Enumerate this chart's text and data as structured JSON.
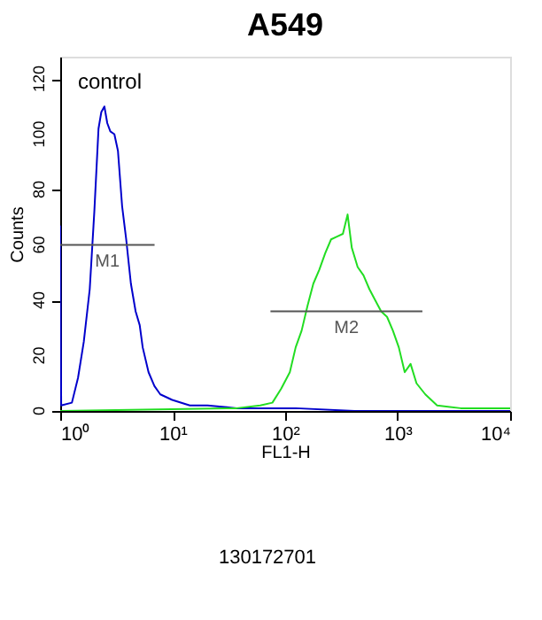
{
  "chart_data": {
    "type": "line",
    "title": "A549",
    "xlabel": "FL1-H",
    "ylabel": "Counts",
    "log": "x",
    "xlim": [
      1,
      10000
    ],
    "xticks": [
      {
        "value": 1,
        "label": "10⁰"
      },
      {
        "value": 10,
        "label": "10¹"
      },
      {
        "value": 100,
        "label": "10²"
      },
      {
        "value": 1000,
        "label": "10³"
      },
      {
        "value": 10000,
        "label": "10⁴"
      }
    ],
    "ylim": [
      0,
      128
    ],
    "yticks": [
      0,
      20,
      40,
      60,
      80,
      100,
      120
    ],
    "grid": false,
    "annotations": [
      "130172701"
    ],
    "series": [
      {
        "name": "control",
        "color": "#0000cc",
        "x": [
          1,
          1.02,
          1.27,
          1.44,
          1.62,
          1.83,
          2.01,
          2.19,
          2.32,
          2.47,
          2.62,
          2.79,
          3.03,
          3.26,
          3.55,
          3.86,
          4.25,
          4.68,
          5.09,
          5.41,
          6.1,
          6.88,
          7.76,
          9.9,
          14.2,
          20.4,
          37,
          124,
          415,
          10000
        ],
        "values": [
          67,
          2,
          3,
          12,
          25,
          44,
          72,
          102,
          108,
          110,
          104,
          101,
          100,
          94,
          74,
          62,
          46,
          36,
          31,
          23,
          14,
          9,
          6,
          4,
          2,
          2,
          1,
          1,
          0,
          0
        ]
      },
      {
        "color": "#22dd22",
        "x": [
          1,
          37,
          60,
          77,
          92,
          110,
          124,
          140,
          158,
          178,
          201,
          227,
          256,
          289,
          326,
          359,
          391,
          441,
          497,
          561,
          632,
          713,
          805,
          908,
          1024,
          1156,
          1303,
          1471,
          1762,
          2243,
          3631,
          10000
        ],
        "values": [
          0,
          1,
          2,
          3,
          8,
          14,
          23,
          29,
          38,
          46,
          51,
          57,
          62,
          63,
          64,
          71,
          59,
          52,
          49,
          44,
          40,
          36,
          34,
          29,
          23,
          14,
          17,
          10,
          6,
          2,
          1,
          1
        ]
      },
      {
        "name": "M1",
        "color": "#555555",
        "x": [
          1,
          6.9
        ],
        "values": [
          60,
          60
        ]
      },
      {
        "name": "M2",
        "color": "#555555",
        "x": [
          74,
          1660
        ],
        "values": [
          36,
          36
        ]
      }
    ]
  }
}
